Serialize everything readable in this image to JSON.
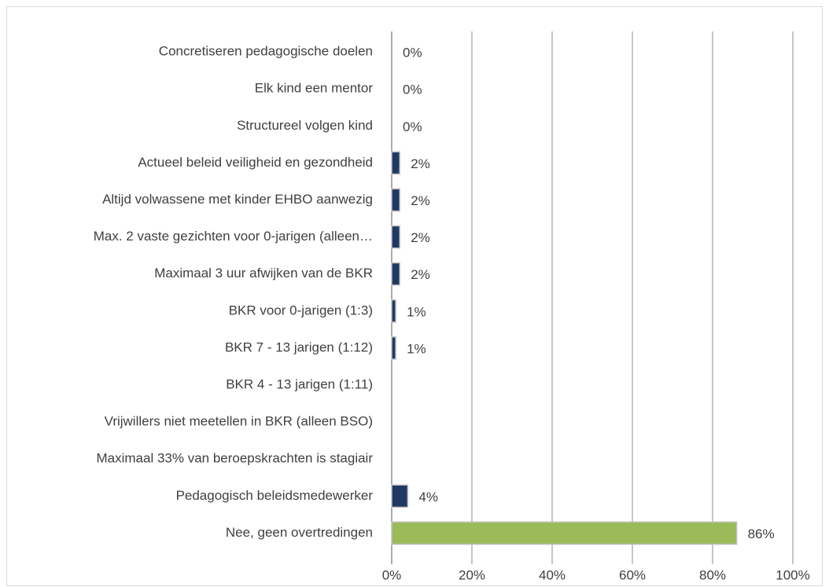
{
  "chart_data": {
    "type": "bar",
    "orientation": "horizontal",
    "categories": [
      "Concretiseren pedagogische doelen",
      "Elk kind een mentor",
      "Structureel volgen kind",
      "Actueel beleid veiligheid en gezondheid",
      "Altijd volwassene met kinder EHBO aanwezig",
      "Max. 2 vaste gezichten voor 0-jarigen (alleen…",
      "Maximaal 3 uur afwijken van de BKR",
      "BKR voor 0-jarigen (1:3)",
      "BKR 7 - 13 jarigen (1:12)",
      "BKR 4 - 13 jarigen (1:11)",
      "Vrijwillers  niet meetellen in BKR (alleen BSO)",
      "Maximaal 33% van beroepskrachten is stagiair",
      "Pedagogisch beleidsmedewerker",
      "Nee, geen overtredingen"
    ],
    "values": [
      0,
      0,
      0,
      2,
      2,
      2,
      2,
      1,
      1,
      null,
      null,
      null,
      4,
      86
    ],
    "value_labels": [
      "0%",
      "0%",
      "0%",
      "2%",
      "2%",
      "2%",
      "2%",
      "1%",
      "1%",
      null,
      null,
      null,
      "4%",
      "86%"
    ],
    "colors": [
      "#1f3864",
      "#1f3864",
      "#1f3864",
      "#1f3864",
      "#1f3864",
      "#1f3864",
      "#1f3864",
      "#1f3864",
      "#1f3864",
      "#1f3864",
      "#1f3864",
      "#1f3864",
      "#1f3864",
      "#9bbb59"
    ],
    "xlim": [
      0,
      100
    ],
    "xticks": [
      {
        "value": 0,
        "label": "0%"
      },
      {
        "value": 20,
        "label": "20%"
      },
      {
        "value": 40,
        "label": "40%"
      },
      {
        "value": 60,
        "label": "60%"
      },
      {
        "value": 80,
        "label": "80%"
      },
      {
        "value": 100,
        "label": "100%"
      }
    ],
    "grid": true
  }
}
